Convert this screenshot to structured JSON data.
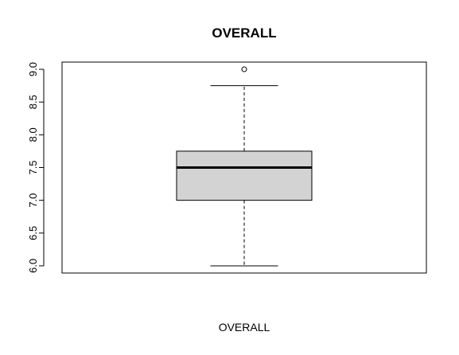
{
  "chart_data": {
    "type": "boxplot",
    "title": "OVERALL",
    "xlabel": "OVERALL",
    "ylabel": "",
    "ylim": [
      5.89,
      9.11
    ],
    "y_ticks": [
      {
        "value": 6.0,
        "label": "6.0"
      },
      {
        "value": 6.5,
        "label": "6.5"
      },
      {
        "value": 7.0,
        "label": "7.0"
      },
      {
        "value": 7.5,
        "label": "7.5"
      },
      {
        "value": 8.0,
        "label": "8.0"
      },
      {
        "value": 8.5,
        "label": "8.5"
      },
      {
        "value": 9.0,
        "label": "9.0"
      }
    ],
    "box": {
      "whisker_low": 6.0,
      "q1": 7.0,
      "median": 7.5,
      "q3": 7.75,
      "whisker_high": 8.75,
      "outliers": [
        9.0
      ]
    },
    "box_fill": "#d3d3d3",
    "grid": false
  }
}
